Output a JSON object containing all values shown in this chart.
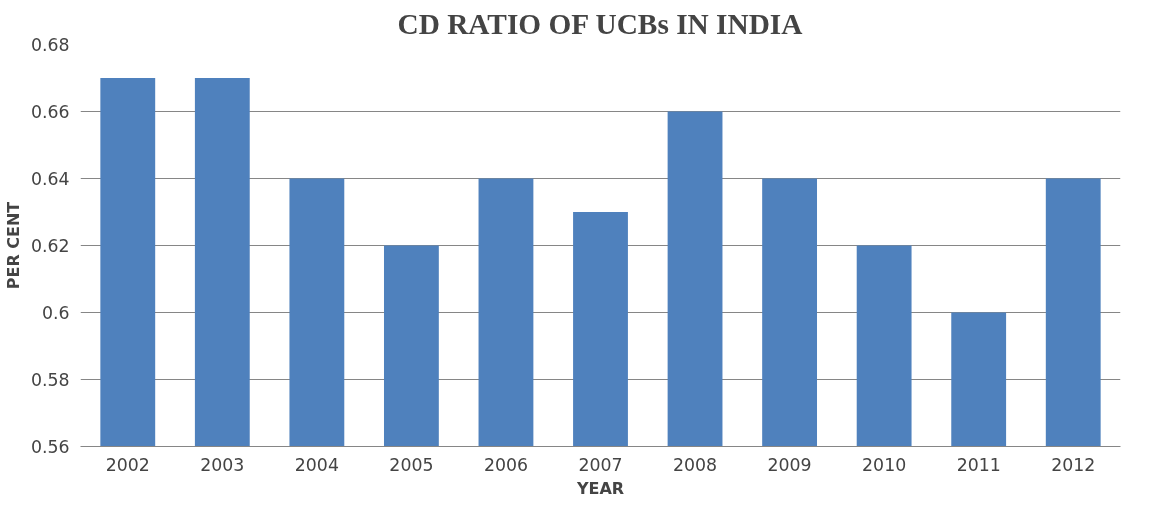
{
  "chart_data": {
    "type": "bar",
    "title": "CD RATIO OF UCBs IN INDIA",
    "xlabel": "YEAR",
    "ylabel": "PER CENT",
    "categories": [
      "2002",
      "2003",
      "2004",
      "2005",
      "2006",
      "2007",
      "2008",
      "2009",
      "2010",
      "2011",
      "2012"
    ],
    "values": [
      0.67,
      0.67,
      0.64,
      0.62,
      0.64,
      0.63,
      0.66,
      0.64,
      0.62,
      0.6,
      0.64
    ],
    "color": "#4f81bd",
    "ylim": [
      0.56,
      0.68
    ],
    "yticks": [
      0.56,
      0.58,
      0.6,
      0.62,
      0.64,
      0.66,
      0.68
    ],
    "grid": "y"
  }
}
